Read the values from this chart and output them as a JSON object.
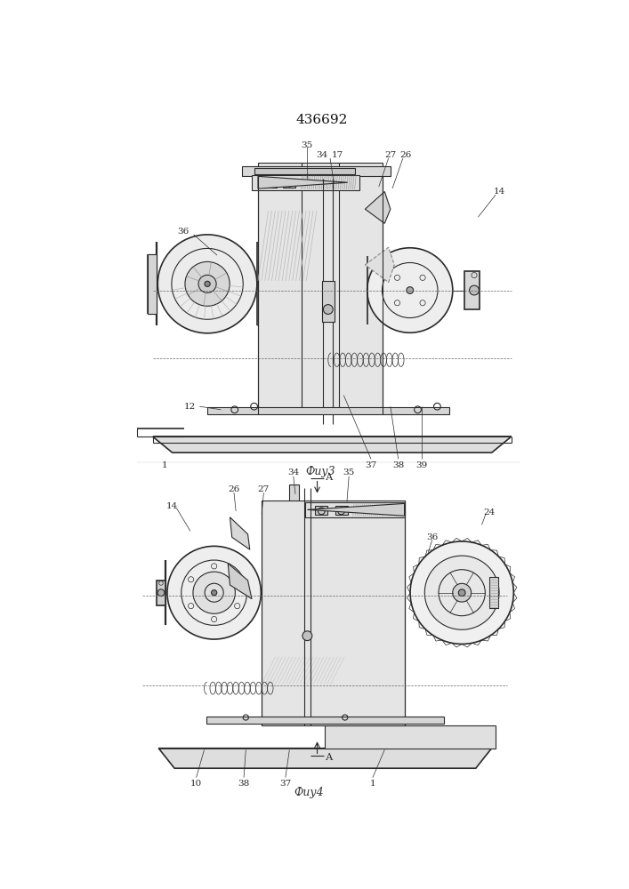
{
  "title": "436692",
  "background_color": "#ffffff",
  "fig3_label": "Фиу3",
  "fig4_label": "Фиу4",
  "line_color": "#2a2a2a",
  "dash_color": "#666666",
  "fill_light": "#e8e8e8",
  "fill_med": "#d0d0d0",
  "fill_dark": "#b8b8b8"
}
